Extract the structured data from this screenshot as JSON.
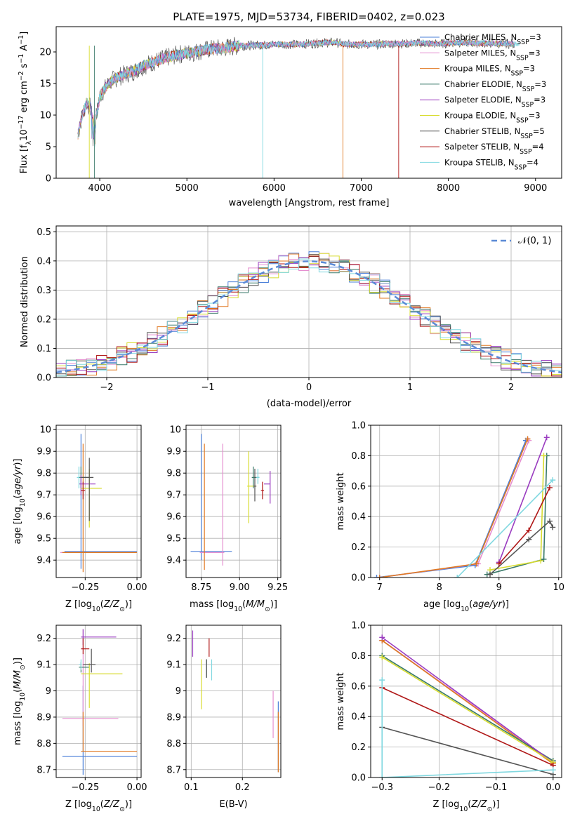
{
  "figure": {
    "title": "PLATE=1975, MJD=53734, FIBERID=0402, z=0.023"
  },
  "colors": [
    "#4a7fd8",
    "#e58fd0",
    "#e07820",
    "#3a7a6a",
    "#9a3cc0",
    "#d8dc30",
    "#555555",
    "#b01818",
    "#80d8e0"
  ],
  "chart_data": [
    {
      "id": "spectrum",
      "type": "line",
      "xlabel": "wavelength [Angstrom, rest frame]",
      "ylabel_parts": [
        "Flux [f",
        "λ",
        "10",
        "−17",
        " erg cm",
        "−2",
        " s",
        "−1",
        " A",
        "−1",
        "]"
      ],
      "xlim": [
        3500,
        9300
      ],
      "ylim": [
        0,
        24
      ],
      "xticks": [
        4000,
        5000,
        6000,
        7000,
        8000,
        9000
      ],
      "yticks": [
        0,
        5,
        10,
        15,
        20
      ],
      "grid": false,
      "legend_position": "upper right",
      "legend": [
        {
          "label": "Chabrier MILES, N",
          "sub": "SSP",
          "suffix": "=3"
        },
        {
          "label": "Salpeter MILES, N",
          "sub": "SSP",
          "suffix": "=3"
        },
        {
          "label": "Kroupa MILES, N",
          "sub": "SSP",
          "suffix": "=3"
        },
        {
          "label": "Chabrier ELODIE, N",
          "sub": "SSP",
          "suffix": "=3"
        },
        {
          "label": "Salpeter ELODIE, N",
          "sub": "SSP",
          "suffix": "=3"
        },
        {
          "label": "Kroupa ELODIE, N",
          "sub": "SSP",
          "suffix": "=3"
        },
        {
          "label": "Chabrier STELIB, N",
          "sub": "SSP",
          "suffix": "=5"
        },
        {
          "label": "Salpeter STELIB, N",
          "sub": "SSP",
          "suffix": "=4"
        },
        {
          "label": "Kroupa STELIB, N",
          "sub": "SSP",
          "suffix": "=4"
        }
      ],
      "data_spectrum": {
        "x": [
          3750,
          3800,
          3850,
          3900,
          3950,
          4000,
          4050,
          4100,
          4150,
          4200,
          4300,
          4400,
          4500,
          4600,
          4700,
          4800,
          4900,
          5000,
          5100,
          5200,
          5300,
          5400,
          5500,
          5600,
          5700,
          5800,
          5900,
          6000,
          6100,
          6200,
          6300,
          6400,
          6500,
          6600,
          6700,
          6800,
          6900,
          7000,
          7100,
          7200,
          7300,
          7400,
          7500,
          7600,
          7700,
          7800,
          7900,
          8000,
          8100,
          8200,
          8300,
          8400,
          8500,
          8600,
          8700,
          8800
        ],
        "y": [
          7,
          10,
          12,
          11,
          9,
          13,
          14,
          15,
          15.5,
          16,
          16.5,
          17,
          17.8,
          18.3,
          18.8,
          19.2,
          19.6,
          19.8,
          20,
          20.3,
          20.5,
          20.6,
          20.8,
          21,
          21,
          21.1,
          21.1,
          21.2,
          21.2,
          21.2,
          21.2,
          21.3,
          21.4,
          21.5,
          21.5,
          21.2,
          21.2,
          21.2,
          21.2,
          21.2,
          21.3,
          21.3,
          21.3,
          21.4,
          21.4,
          21.3,
          21.3,
          21.4,
          21.5,
          21.5,
          21.4,
          21.4,
          21.4,
          21.3,
          21.3,
          21.2
        ]
      }
    },
    {
      "id": "residuals",
      "type": "histogram",
      "xlabel": "(data-model)/error",
      "ylabel": "Normed distribution",
      "xlim": [
        -2.5,
        2.5
      ],
      "ylim": [
        0,
        0.52
      ],
      "xticks": [
        -2,
        -1,
        0,
        1,
        2
      ],
      "xticklabels": [
        "−2",
        "−1",
        "0",
        "1",
        "2"
      ],
      "yticks": [
        0.0,
        0.1,
        0.2,
        0.3,
        0.4,
        0.5
      ],
      "yticklabels": [
        "0.0",
        "0.1",
        "0.2",
        "0.3",
        "0.4",
        "0.5"
      ],
      "grid": true,
      "legend_position": "upper right",
      "reference_label": "𝒩(0, 1)",
      "reference_color": "#5b8ad6"
    },
    {
      "id": "age-vs-Z",
      "type": "scatter",
      "xlabel": "Z [log10(Z/Z⊙)]",
      "ylabel": "age  [log10(age/yr)]",
      "xlim": [
        -0.39,
        0.02
      ],
      "ylim": [
        9.32,
        10.02
      ],
      "xticks": [
        -0.25,
        0.0
      ],
      "xticklabels": [
        "−0.25",
        "0.00"
      ],
      "yticks": [
        9.4,
        9.5,
        9.6,
        9.7,
        9.8,
        9.9,
        10.0
      ],
      "grid": true,
      "errorbars": [
        {
          "x": -0.27,
          "y": 9.44,
          "xerr": [
            0.08,
            0.27
          ],
          "yerr": [
            0.08,
            0.54
          ]
        },
        {
          "x": -0.27,
          "y": 9.435,
          "xerr": [
            0.1,
            0.0
          ],
          "yerr": [
            0,
            0
          ]
        },
        {
          "x": -0.26,
          "y": 9.435,
          "xerr": [
            0.1,
            0.26
          ],
          "yerr": [
            0.09,
            0.5
          ]
        },
        {
          "x": -0.27,
          "y": 9.78,
          "xerr": [
            0.01,
            0.04
          ],
          "yerr": [
            0.05,
            0.05
          ]
        },
        {
          "x": -0.27,
          "y": 9.75,
          "xerr": [
            0.01,
            0.07
          ],
          "yerr": [
            0.05,
            0.04
          ]
        },
        {
          "x": -0.23,
          "y": 9.73,
          "xerr": [
            0.04,
            0.06
          ],
          "yerr": [
            0.18,
            0.09
          ]
        },
        {
          "x": -0.23,
          "y": 9.78,
          "xerr": [
            0.04,
            0.02
          ],
          "yerr": [
            0.2,
            0.09
          ]
        },
        {
          "x": -0.26,
          "y": 9.72,
          "xerr": [
            0.01,
            0.01
          ],
          "yerr": [
            0.04,
            0.04
          ]
        },
        {
          "x": -0.28,
          "y": 9.78,
          "xerr": [
            0.01,
            0.0
          ],
          "yerr": [
            0.05,
            0.05
          ]
        }
      ]
    },
    {
      "id": "age-vs-mass",
      "type": "scatter",
      "xlabel": "mass [log10(M/M⊙)]",
      "ylabel": "",
      "xlim": [
        8.65,
        9.27
      ],
      "ylim": [
        9.32,
        10.02
      ],
      "xticks": [
        8.75,
        9.0,
        9.25
      ],
      "xticklabels": [
        "8.75",
        "9.00",
        "9.25"
      ],
      "yticks": [
        9.4,
        9.5,
        9.6,
        9.7,
        9.8,
        9.9,
        10.0
      ],
      "grid": true,
      "errorbars": [
        {
          "x": 8.75,
          "y": 9.44,
          "xerr": [
            0.07,
            0.2
          ],
          "yerr": [
            0.04,
            0.54
          ]
        },
        {
          "x": 8.89,
          "y": 9.435,
          "xerr": [
            0.15,
            0.01
          ],
          "yerr": [
            0.06,
            0.5
          ]
        },
        {
          "x": 8.77,
          "y": 9.435,
          "xerr": [
            0.0,
            0.0
          ],
          "yerr": [
            0.08,
            0.5
          ]
        },
        {
          "x": 9.09,
          "y": 9.78,
          "xerr": [
            0.01,
            0.04
          ],
          "yerr": [
            0.05,
            0.05
          ]
        },
        {
          "x": 9.2,
          "y": 9.75,
          "xerr": [
            0.04,
            0.0
          ],
          "yerr": [
            0.09,
            0.06
          ]
        },
        {
          "x": 9.06,
          "y": 9.74,
          "xerr": [
            0.01,
            0.05
          ],
          "yerr": [
            0.17,
            0.16
          ]
        },
        {
          "x": 9.1,
          "y": 9.74,
          "xerr": [
            0.01,
            0.01
          ],
          "yerr": [
            0.07,
            0.08
          ]
        },
        {
          "x": 9.15,
          "y": 9.72,
          "xerr": [
            0.01,
            0.01
          ],
          "yerr": [
            0.04,
            0.04
          ]
        },
        {
          "x": 9.12,
          "y": 9.78,
          "xerr": [
            0.01,
            0.01
          ],
          "yerr": [
            0.03,
            0.04
          ]
        }
      ]
    },
    {
      "id": "massweight-vs-age",
      "type": "line",
      "xlabel": "age  [log10(age/yr)]",
      "ylabel": "mass weight",
      "xlim": [
        6.85,
        10.05
      ],
      "ylim": [
        0,
        1
      ],
      "xticks": [
        7,
        8,
        9,
        10
      ],
      "yticks": [
        0,
        0.2,
        0.4,
        0.6,
        0.8,
        1.0
      ],
      "yticklabels": [
        "0.0",
        "0.2",
        "0.4",
        "0.6",
        "0.8",
        "1.0"
      ],
      "grid": true,
      "series": [
        {
          "x": [
            6.95,
            8.6,
            9.45
          ],
          "y": [
            0.0,
            0.08,
            0.9
          ],
          "ci": 0
        },
        {
          "x": [
            7.0,
            8.65,
            9.5
          ],
          "y": [
            0.0,
            0.09,
            0.9
          ],
          "ci": 1
        },
        {
          "x": [
            7.0,
            8.62,
            9.48
          ],
          "y": [
            0.0,
            0.09,
            0.91
          ],
          "ci": 2
        },
        {
          "x": [
            8.8,
            9.75,
            9.8
          ],
          "y": [
            0.02,
            0.12,
            0.8
          ],
          "ci": 3
        },
        {
          "x": [
            9.0,
            9.8
          ],
          "y": [
            0.1,
            0.92
          ],
          "ci": 4
        },
        {
          "x": [
            8.85,
            9.7,
            9.75
          ],
          "y": [
            0.05,
            0.11,
            0.8
          ],
          "ci": 5
        },
        {
          "x": [
            8.85,
            9.5,
            9.85,
            9.9
          ],
          "y": [
            0.02,
            0.25,
            0.37,
            0.33
          ],
          "ci": 6
        },
        {
          "x": [
            9.0,
            9.5,
            9.85
          ],
          "y": [
            0.09,
            0.31,
            0.59
          ],
          "ci": 7
        },
        {
          "x": [
            8.3,
            9.9
          ],
          "y": [
            0.0,
            0.64
          ],
          "ci": 8
        }
      ]
    },
    {
      "id": "mass-vs-Z",
      "type": "scatter",
      "xlabel": "Z [log10(Z/Z⊙)]",
      "ylabel": "mass [log10(M/M⊙)]",
      "xlim": [
        -0.39,
        0.02
      ],
      "ylim": [
        8.67,
        9.25
      ],
      "xticks": [
        -0.25,
        0.0
      ],
      "xticklabels": [
        "−0.25",
        "0.00"
      ],
      "yticks": [
        8.7,
        8.8,
        8.9,
        9.0,
        9.1,
        9.2
      ],
      "grid": true,
      "errorbars": [
        {
          "x": -0.26,
          "y": 8.75,
          "xerr": [
            0.1,
            0.26
          ],
          "yerr": [
            0.07,
            0.27
          ]
        },
        {
          "x": -0.26,
          "y": 8.895,
          "xerr": [
            0.1,
            0.17
          ],
          "yerr": [
            0.03,
            0.34
          ]
        },
        {
          "x": -0.26,
          "y": 8.77,
          "xerr": [
            0.01,
            0.26
          ],
          "yerr": [
            0.0,
            0.15
          ]
        },
        {
          "x": -0.27,
          "y": 9.09,
          "xerr": [
            0.01,
            0.04
          ],
          "yerr": [
            0.02,
            0.02
          ]
        },
        {
          "x": -0.26,
          "y": 9.205,
          "xerr": [
            0.01,
            0.16
          ],
          "yerr": [
            0.03,
            0.03
          ]
        },
        {
          "x": -0.23,
          "y": 9.065,
          "xerr": [
            0.04,
            0.16
          ],
          "yerr": [
            0.13,
            0.04
          ]
        },
        {
          "x": -0.22,
          "y": 9.1,
          "xerr": [
            0.04,
            0.02
          ],
          "yerr": [
            0.03,
            0.06
          ]
        },
        {
          "x": -0.26,
          "y": 9.16,
          "xerr": [
            0.01,
            0.03
          ],
          "yerr": [
            0.02,
            0.04
          ]
        },
        {
          "x": -0.27,
          "y": 9.1,
          "xerr": [
            0.01,
            0.0
          ],
          "yerr": [
            0.02,
            0.02
          ]
        }
      ]
    },
    {
      "id": "mass-vs-EBV",
      "type": "scatter",
      "xlabel": "E(B-V)",
      "ylabel": "",
      "xlim": [
        0.09,
        0.275
      ],
      "ylim": [
        8.67,
        9.25
      ],
      "xticks": [
        0.1,
        0.2
      ],
      "xticklabels": [
        "0.1",
        "0.2"
      ],
      "yticks": [
        8.7,
        8.8,
        8.9,
        9.0,
        9.1,
        9.2
      ],
      "grid": true,
      "errorbars": [
        {
          "x": 0.27,
          "y": 8.83,
          "xerr": [
            0,
            0
          ],
          "yerr": [
            0.14,
            0.13
          ]
        },
        {
          "x": 0.26,
          "y": 8.9,
          "xerr": [
            0,
            0
          ],
          "yerr": [
            0.08,
            0.1
          ]
        },
        {
          "x": 0.27,
          "y": 8.8,
          "xerr": [
            0,
            0
          ],
          "yerr": [
            0.11,
            0.12
          ]
        },
        {
          "x": 0.13,
          "y": 9.08,
          "xerr": [
            0,
            0
          ],
          "yerr": [
            0.03,
            0.04
          ]
        },
        {
          "x": 0.103,
          "y": 9.18,
          "xerr": [
            0,
            0
          ],
          "yerr": [
            0.05,
            0.05
          ]
        },
        {
          "x": 0.12,
          "y": 9.0,
          "xerr": [
            0,
            0
          ],
          "yerr": [
            0.07,
            0.12
          ]
        },
        {
          "x": 0.13,
          "y": 9.08,
          "xerr": [
            0,
            0
          ],
          "yerr": [
            0.03,
            0.04
          ]
        },
        {
          "x": 0.135,
          "y": 9.16,
          "xerr": [
            0,
            0
          ],
          "yerr": [
            0.03,
            0.04
          ]
        },
        {
          "x": 0.14,
          "y": 9.08,
          "xerr": [
            0,
            0
          ],
          "yerr": [
            0.04,
            0.04
          ]
        }
      ]
    },
    {
      "id": "massweight-vs-Z",
      "type": "line",
      "xlabel": "Z [log10(Z/Z⊙)]",
      "ylabel": "mass weight",
      "xlim": [
        -0.32,
        0.015
      ],
      "ylim": [
        0,
        1
      ],
      "xticks": [
        -0.3,
        -0.2,
        -0.1,
        0.0
      ],
      "xticklabels": [
        "−0.3",
        "−0.2",
        "−0.1",
        "0.0"
      ],
      "yticks": [
        0,
        0.2,
        0.4,
        0.6,
        0.8,
        1.0
      ],
      "yticklabels": [
        "0.0",
        "0.2",
        "0.4",
        "0.6",
        "0.8",
        "1.0"
      ],
      "grid": true,
      "series": [
        {
          "x": [
            -0.3,
            0.0
          ],
          "y": [
            0.9,
            0.1
          ],
          "ci": 0
        },
        {
          "x": [
            -0.3,
            0.0
          ],
          "y": [
            0.9,
            0.1
          ],
          "ci": 1
        },
        {
          "x": [
            -0.3,
            0.0
          ],
          "y": [
            0.9,
            0.09
          ],
          "ci": 2
        },
        {
          "x": [
            -0.3,
            0.0
          ],
          "y": [
            0.8,
            0.11
          ],
          "ci": 3
        },
        {
          "x": [
            -0.3,
            0.0
          ],
          "y": [
            0.92,
            0.1
          ],
          "ci": 4
        },
        {
          "x": [
            -0.3,
            0.0
          ],
          "y": [
            0.79,
            0.1
          ],
          "ci": 5
        },
        {
          "x": [
            -0.3,
            0.0
          ],
          "y": [
            0.33,
            0.02
          ],
          "ci": 6
        },
        {
          "x": [
            -0.3,
            0.0
          ],
          "y": [
            0.59,
            0.08
          ],
          "ci": 7
        },
        {
          "x": [
            -0.3,
            -0.3,
            0.0
          ],
          "y": [
            0.64,
            0.0,
            0.05
          ],
          "ci": 8
        }
      ]
    }
  ]
}
